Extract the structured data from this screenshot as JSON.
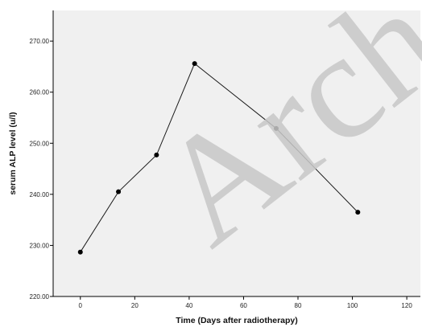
{
  "chart_data": {
    "type": "line",
    "xlabel": "Time (Days after radiotherapy)",
    "ylabel": "serum ALP level (u/l)",
    "xlim": [
      -10,
      125
    ],
    "ylim": [
      220,
      276
    ],
    "x_ticks": [
      0,
      20,
      40,
      60,
      80,
      100,
      120
    ],
    "y_ticks": [
      220,
      230,
      240,
      250,
      260,
      270
    ],
    "y_tick_labels": [
      "220.00",
      "230.00",
      "240.00",
      "250.00",
      "260.00",
      "270.00"
    ],
    "series": [
      {
        "x": [
          0,
          14,
          28,
          42,
          72,
          102
        ],
        "y": [
          228.7,
          240.5,
          247.7,
          265.6,
          252.9,
          236.5
        ]
      }
    ],
    "grid": false,
    "legend": "none",
    "watermark": "Arch",
    "colors": {
      "plot_background": "#f0f0f0",
      "line": "#1a1a1a",
      "marker": "#000000",
      "watermark": "#c8c8c8"
    }
  }
}
